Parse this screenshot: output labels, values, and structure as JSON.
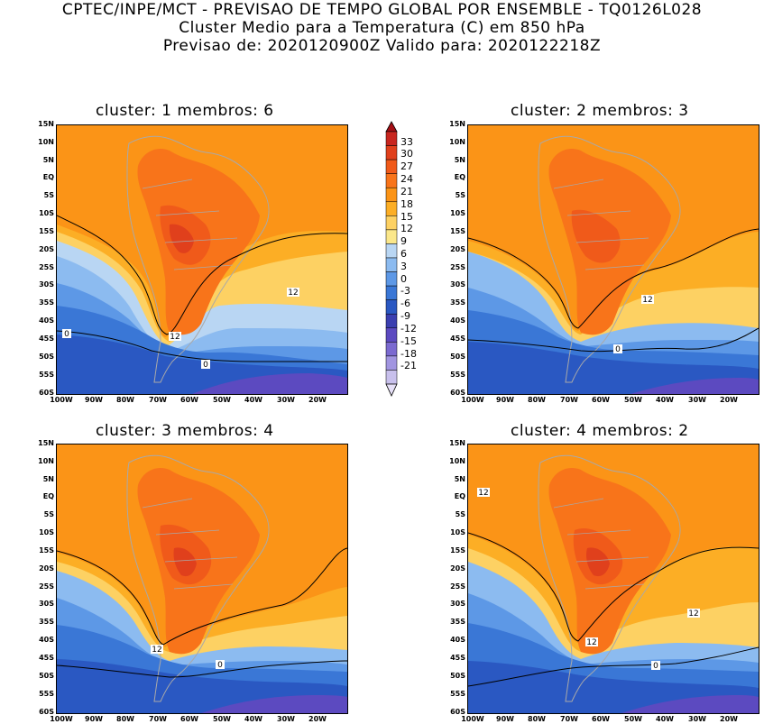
{
  "header": {
    "line1": "CPTEC/INPE/MCT - PREVISAO DE TEMPO GLOBAL POR ENSEMBLE - TQ0126L028",
    "line2": "Cluster Medio para a Temperatura (C) em 850 hPa",
    "line3": "Previsao de: 2020120900Z    Valido para: 2020122218Z"
  },
  "panels": [
    {
      "title": "cluster: 1   membros: 6",
      "contours": [
        "12",
        "12",
        "0",
        "0"
      ]
    },
    {
      "title": "cluster: 2   membros: 3",
      "contours": [
        "12",
        "0"
      ]
    },
    {
      "title": "cluster: 3   membros: 4",
      "contours": [
        "12",
        "0"
      ]
    },
    {
      "title": "cluster: 4   membros: 2",
      "contours": [
        "12",
        "12",
        "12",
        "0"
      ]
    }
  ],
  "axes": {
    "lat_labels": [
      "15N",
      "10N",
      "5N",
      "EQ",
      "5S",
      "10S",
      "15S",
      "20S",
      "25S",
      "30S",
      "35S",
      "40S",
      "45S",
      "50S",
      "55S",
      "60S"
    ],
    "lon_labels": [
      "100W",
      "90W",
      "80W",
      "70W",
      "60W",
      "50W",
      "40W",
      "30W",
      "20W"
    ]
  },
  "colorbar": {
    "labels": [
      "33",
      "30",
      "27",
      "24",
      "21",
      "18",
      "15",
      "12",
      "9",
      "6",
      "3",
      "0",
      "-3",
      "-6",
      "-9",
      "-12",
      "-15",
      "-18",
      "-21"
    ],
    "colors": [
      "#a50f15",
      "#c8261f",
      "#e0401c",
      "#f05a1a",
      "#f8741a",
      "#fb9417",
      "#fcae25",
      "#fdd163",
      "#fbe78a",
      "#b9d6f3",
      "#8cbbf0",
      "#5d98e6",
      "#3a77d6",
      "#2a58c2",
      "#3b3fb0",
      "#5c4ac0",
      "#7b6ad0",
      "#a195e0",
      "#c8c0ec",
      "#e6e0f7"
    ]
  },
  "colors": {
    "ocean_warm": "#fcae25",
    "land_hot": "#f05a1a",
    "cold": "#3a77d6",
    "coast": "#a9a9a9"
  }
}
